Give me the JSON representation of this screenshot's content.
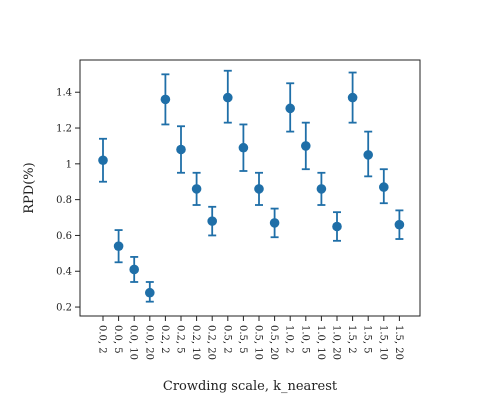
{
  "chart_data": {
    "type": "scatter",
    "title": "",
    "xlabel": "Crowding scale, k_nearest",
    "ylabel": "RPD(%)",
    "ylim": [
      0.15,
      1.58
    ],
    "yticks": [
      0.2,
      0.4,
      0.6,
      0.8,
      1,
      1.2,
      1.4
    ],
    "ytick_labels": [
      "0.2",
      "0.4",
      "0.6",
      "0.8",
      "1",
      "1.2",
      "1.4"
    ],
    "grid": false,
    "legend": "none",
    "color": "#1f6fa8",
    "categories": [
      "0.0, 2",
      "0.0, 5",
      "0.0, 10",
      "0.0, 20",
      "0.2, 2",
      "0.2, 5",
      "0.2, 10",
      "0.2, 20",
      "0.5, 2",
      "0.5, 5",
      "0.5, 10",
      "0.5, 20",
      "1.0, 2",
      "1.0, 5",
      "1.0, 10",
      "1.0, 20",
      "1.5, 2",
      "1.5, 5",
      "1.5, 10",
      "1.5, 20"
    ],
    "values": [
      1.02,
      0.54,
      0.41,
      0.28,
      1.36,
      1.08,
      0.86,
      0.68,
      1.37,
      1.09,
      0.86,
      0.67,
      1.31,
      1.1,
      0.86,
      0.65,
      1.37,
      1.05,
      0.87,
      0.66
    ],
    "error_low": [
      0.9,
      0.45,
      0.34,
      0.23,
      1.22,
      0.95,
      0.77,
      0.6,
      1.23,
      0.96,
      0.77,
      0.59,
      1.18,
      0.97,
      0.77,
      0.57,
      1.23,
      0.93,
      0.78,
      0.58
    ],
    "error_high": [
      1.14,
      0.63,
      0.48,
      0.34,
      1.5,
      1.21,
      0.95,
      0.76,
      1.52,
      1.22,
      0.95,
      0.75,
      1.45,
      1.23,
      0.95,
      0.73,
      1.51,
      1.18,
      0.97,
      0.74
    ]
  }
}
